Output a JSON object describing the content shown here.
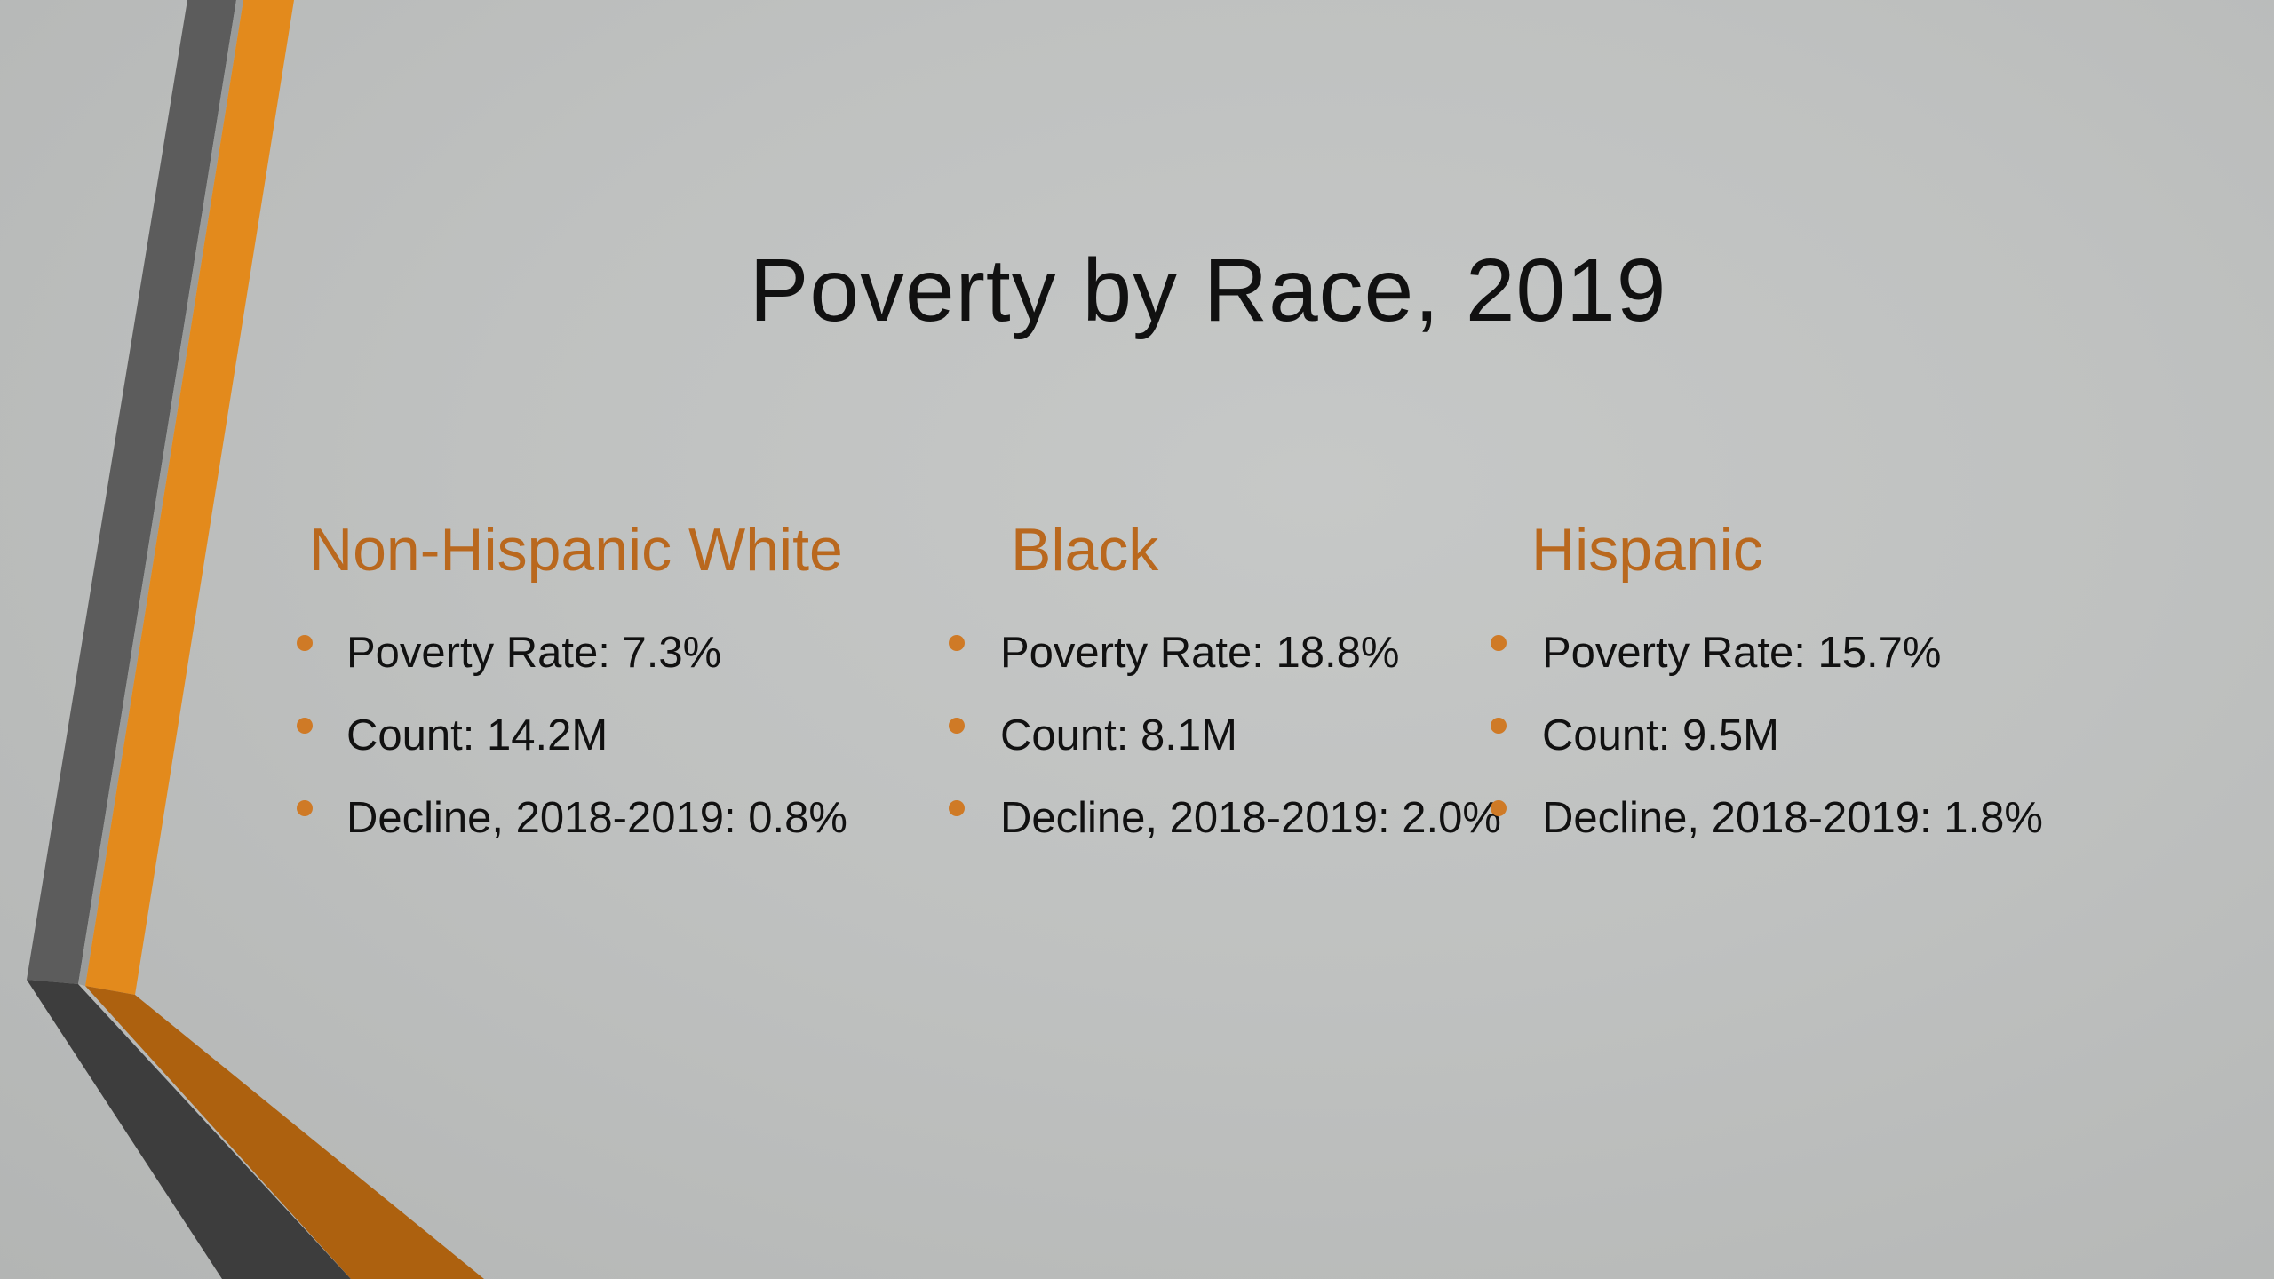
{
  "slide": {
    "title": "Poverty by Race, 2019",
    "accent_color": "#b9681e",
    "bullet_color": "#cf7a26",
    "columns": [
      {
        "heading": "Non-Hispanic White",
        "items": [
          "Poverty Rate: 7.3%",
          "Count: 14.2M",
          "Decline, 2018-2019: 0.8%"
        ]
      },
      {
        "heading": "Black",
        "items": [
          "Poverty Rate: 18.8%",
          "Count: 8.1M",
          "Decline, 2018-2019: 2.0%"
        ]
      },
      {
        "heading": "Hispanic",
        "items": [
          "Poverty Rate: 15.7%",
          "Count: 9.5M",
          "Decline, 2018-2019: 1.8%"
        ]
      }
    ]
  }
}
